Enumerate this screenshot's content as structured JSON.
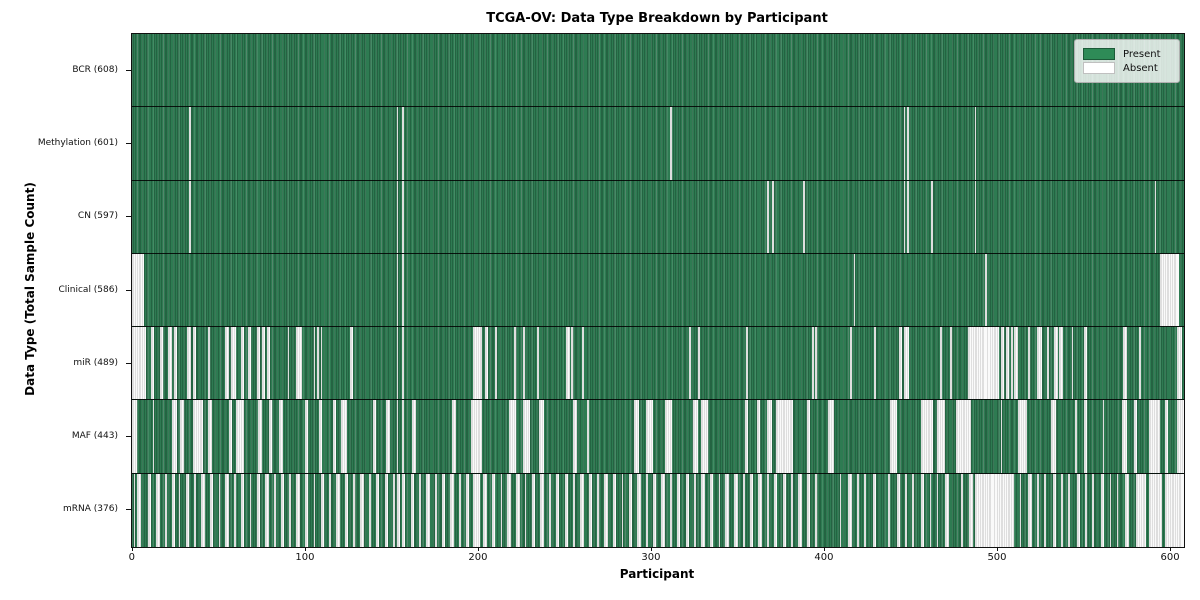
{
  "title": "TCGA-OV: Data Type Breakdown by Participant",
  "xlabel": "Participant",
  "ylabel": "Data Type (Total Sample Count)",
  "legend": {
    "present_label": "Present",
    "absent_label": "Absent"
  },
  "colors": {
    "present": "#2e8b57",
    "present_row_base": "#2e7b52",
    "absent": "#ffffff",
    "row_separator": "#000000",
    "spine": "#111111",
    "legend_background": "#e7ece7"
  },
  "chart_data": {
    "type": "heatmap",
    "title": "TCGA-OV: Data Type Breakdown by Participant",
    "xlabel": "Participant",
    "ylabel": "Data Type (Total Sample Count)",
    "legend_entries": [
      {
        "label": "Present",
        "color": "#2e8b57"
      },
      {
        "label": "Absent",
        "color": "#ffffff"
      }
    ],
    "legend_position": "upper right",
    "grid": false,
    "x_axis": {
      "min": 0,
      "max": 608,
      "ticks": [
        0,
        100,
        200,
        300,
        400,
        500,
        600
      ]
    },
    "total_participants": 608,
    "cell_states": {
      "present": "green",
      "absent": "white"
    },
    "rows": [
      {
        "name": "BCR",
        "label": "BCR (608)",
        "present_count": 608,
        "absent_count": 0,
        "absent_ranges": []
      },
      {
        "name": "Methylation",
        "label": "Methylation (601)",
        "present_count": 601,
        "absent_count": 7,
        "absent_ranges": [
          [
            33,
            33
          ],
          [
            153,
            153
          ],
          [
            156,
            156
          ],
          [
            311,
            311
          ],
          [
            446,
            446
          ],
          [
            448,
            448
          ],
          [
            487,
            487
          ]
        ]
      },
      {
        "name": "CN",
        "label": "CN (597)",
        "present_count": 597,
        "absent_count": 11,
        "absent_ranges": [
          [
            33,
            33
          ],
          [
            153,
            153
          ],
          [
            156,
            156
          ],
          [
            367,
            367
          ],
          [
            370,
            370
          ],
          [
            388,
            388
          ],
          [
            446,
            446
          ],
          [
            448,
            448
          ],
          [
            462,
            462
          ],
          [
            487,
            487
          ],
          [
            591,
            591
          ]
        ]
      },
      {
        "name": "Clinical",
        "label": "Clinical (586)",
        "present_count": 586,
        "absent_count": 22,
        "absent_ranges": [
          [
            0,
            6
          ],
          [
            153,
            153
          ],
          [
            156,
            156
          ],
          [
            417,
            417
          ],
          [
            493,
            493
          ],
          [
            594,
            604
          ]
        ]
      },
      {
        "name": "miR",
        "label": "miR (489)",
        "present_count": 489,
        "absent_count": 119,
        "absent_ranges": [
          [
            0,
            7
          ],
          [
            11,
            12
          ],
          [
            16,
            17
          ],
          [
            21,
            22
          ],
          [
            24,
            25
          ],
          [
            32,
            33
          ],
          [
            35,
            36
          ],
          [
            44,
            44
          ],
          [
            54,
            55
          ],
          [
            57,
            59
          ],
          [
            63,
            64
          ],
          [
            67,
            68
          ],
          [
            72,
            73
          ],
          [
            75,
            76
          ],
          [
            78,
            79
          ],
          [
            90,
            90
          ],
          [
            95,
            97
          ],
          [
            105,
            105
          ],
          [
            107,
            107
          ],
          [
            109,
            109
          ],
          [
            126,
            127
          ],
          [
            153,
            153
          ],
          [
            156,
            156
          ],
          [
            197,
            201
          ],
          [
            204,
            205
          ],
          [
            210,
            210
          ],
          [
            221,
            221
          ],
          [
            226,
            226
          ],
          [
            234,
            234
          ],
          [
            251,
            252
          ],
          [
            254,
            254
          ],
          [
            260,
            260
          ],
          [
            322,
            322
          ],
          [
            327,
            327
          ],
          [
            355,
            355
          ],
          [
            393,
            393
          ],
          [
            395,
            395
          ],
          [
            415,
            415
          ],
          [
            429,
            429
          ],
          [
            443,
            444
          ],
          [
            446,
            448
          ],
          [
            467,
            467
          ],
          [
            473,
            473
          ],
          [
            483,
            500
          ],
          [
            502,
            503
          ],
          [
            505,
            506
          ],
          [
            508,
            508
          ],
          [
            510,
            511
          ],
          [
            518,
            518
          ],
          [
            523,
            525
          ],
          [
            529,
            529
          ],
          [
            533,
            534
          ],
          [
            536,
            537
          ],
          [
            543,
            543
          ],
          [
            550,
            551
          ],
          [
            573,
            574
          ],
          [
            582,
            582
          ],
          [
            604,
            606
          ]
        ]
      },
      {
        "name": "MAF",
        "label": "MAF (443)",
        "present_count": 443,
        "absent_count": 165,
        "absent_ranges": [
          [
            0,
            2
          ],
          [
            12,
            12
          ],
          [
            23,
            25
          ],
          [
            28,
            29
          ],
          [
            35,
            40
          ],
          [
            44,
            45
          ],
          [
            56,
            57
          ],
          [
            60,
            64
          ],
          [
            73,
            74
          ],
          [
            79,
            80
          ],
          [
            85,
            86
          ],
          [
            100,
            101
          ],
          [
            108,
            109
          ],
          [
            116,
            117
          ],
          [
            121,
            123
          ],
          [
            139,
            140
          ],
          [
            147,
            148
          ],
          [
            153,
            153
          ],
          [
            156,
            156
          ],
          [
            162,
            163
          ],
          [
            185,
            186
          ],
          [
            196,
            201
          ],
          [
            218,
            221
          ],
          [
            226,
            229
          ],
          [
            235,
            237
          ],
          [
            255,
            256
          ],
          [
            263,
            263
          ],
          [
            290,
            292
          ],
          [
            297,
            300
          ],
          [
            308,
            311
          ],
          [
            324,
            326
          ],
          [
            329,
            332
          ],
          [
            354,
            355
          ],
          [
            361,
            362
          ],
          [
            367,
            369
          ],
          [
            372,
            381
          ],
          [
            390,
            391
          ],
          [
            402,
            405
          ],
          [
            438,
            441
          ],
          [
            456,
            462
          ],
          [
            465,
            469
          ],
          [
            476,
            484
          ],
          [
            502,
            502
          ],
          [
            512,
            516
          ],
          [
            531,
            533
          ],
          [
            545,
            545
          ],
          [
            550,
            551
          ],
          [
            561,
            561
          ],
          [
            572,
            574
          ],
          [
            579,
            580
          ],
          [
            588,
            593
          ],
          [
            597,
            598
          ],
          [
            604,
            607
          ]
        ]
      },
      {
        "name": "mRNA",
        "label": "mRNA (376)",
        "present_count": 376,
        "absent_count": 232,
        "absent_ranges": [
          [
            1,
            1
          ],
          [
            3,
            4
          ],
          [
            9,
            10
          ],
          [
            14,
            15
          ],
          [
            19,
            19
          ],
          [
            23,
            24
          ],
          [
            27,
            27
          ],
          [
            31,
            32
          ],
          [
            36,
            36
          ],
          [
            40,
            41
          ],
          [
            45,
            46
          ],
          [
            50,
            50
          ],
          [
            54,
            55
          ],
          [
            59,
            59
          ],
          [
            63,
            64
          ],
          [
            68,
            68
          ],
          [
            72,
            73
          ],
          [
            77,
            78
          ],
          [
            82,
            82
          ],
          [
            86,
            87
          ],
          [
            91,
            91
          ],
          [
            95,
            96
          ],
          [
            100,
            101
          ],
          [
            105,
            105
          ],
          [
            109,
            110
          ],
          [
            114,
            114
          ],
          [
            118,
            119
          ],
          [
            123,
            124
          ],
          [
            128,
            128
          ],
          [
            132,
            133
          ],
          [
            137,
            137
          ],
          [
            141,
            142
          ],
          [
            146,
            147
          ],
          [
            151,
            151
          ],
          [
            153,
            154
          ],
          [
            156,
            157
          ],
          [
            161,
            162
          ],
          [
            166,
            166
          ],
          [
            170,
            171
          ],
          [
            175,
            175
          ],
          [
            179,
            180
          ],
          [
            184,
            185
          ],
          [
            189,
            189
          ],
          [
            193,
            194
          ],
          [
            197,
            200
          ],
          [
            203,
            204
          ],
          [
            208,
            209
          ],
          [
            213,
            213
          ],
          [
            217,
            218
          ],
          [
            222,
            223
          ],
          [
            227,
            227
          ],
          [
            231,
            232
          ],
          [
            236,
            237
          ],
          [
            241,
            241
          ],
          [
            245,
            246
          ],
          [
            250,
            251
          ],
          [
            255,
            255
          ],
          [
            259,
            260
          ],
          [
            264,
            265
          ],
          [
            269,
            269
          ],
          [
            273,
            274
          ],
          [
            278,
            279
          ],
          [
            283,
            283
          ],
          [
            287,
            288
          ],
          [
            292,
            293
          ],
          [
            297,
            297
          ],
          [
            301,
            302
          ],
          [
            306,
            307
          ],
          [
            311,
            311
          ],
          [
            315,
            316
          ],
          [
            320,
            321
          ],
          [
            325,
            325
          ],
          [
            329,
            330
          ],
          [
            334,
            335
          ],
          [
            339,
            339
          ],
          [
            343,
            344
          ],
          [
            348,
            349
          ],
          [
            353,
            353
          ],
          [
            357,
            358
          ],
          [
            362,
            363
          ],
          [
            367,
            367
          ],
          [
            371,
            372
          ],
          [
            376,
            377
          ],
          [
            381,
            381
          ],
          [
            385,
            386
          ],
          [
            390,
            391
          ],
          [
            395,
            395
          ],
          [
            409,
            409
          ],
          [
            414,
            415
          ],
          [
            419,
            419
          ],
          [
            423,
            423
          ],
          [
            428,
            429
          ],
          [
            437,
            437
          ],
          [
            442,
            443
          ],
          [
            447,
            447
          ],
          [
            451,
            451
          ],
          [
            456,
            457
          ],
          [
            461,
            461
          ],
          [
            465,
            465
          ],
          [
            470,
            471
          ],
          [
            479,
            479
          ],
          [
            484,
            485
          ],
          [
            487,
            509
          ],
          [
            513,
            513
          ],
          [
            518,
            519
          ],
          [
            523,
            523
          ],
          [
            527,
            527
          ],
          [
            532,
            533
          ],
          [
            537,
            537
          ],
          [
            541,
            541
          ],
          [
            546,
            547
          ],
          [
            551,
            551
          ],
          [
            555,
            555
          ],
          [
            560,
            561
          ],
          [
            565,
            565
          ],
          [
            569,
            569
          ],
          [
            574,
            575
          ],
          [
            580,
            585
          ],
          [
            588,
            594
          ],
          [
            597,
            607
          ]
        ]
      }
    ]
  }
}
